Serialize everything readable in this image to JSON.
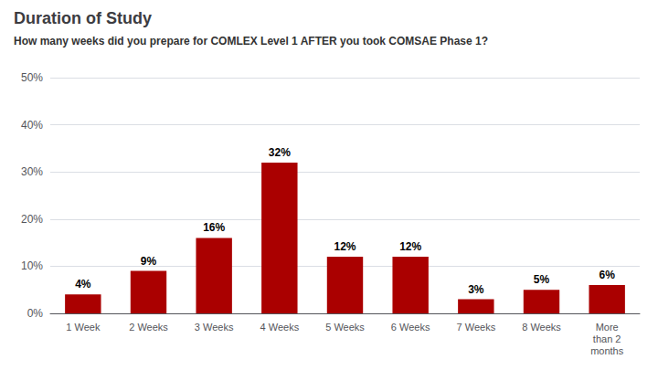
{
  "chart_data": {
    "type": "bar",
    "title": "Duration of Study",
    "subtitle": "How many weeks did you prepare for COMLEX Level 1 AFTER you took COMSAE Phase 1?",
    "categories": [
      "1 Week",
      "2 Weeks",
      "3 Weeks",
      "4 Weeks",
      "5 Weeks",
      "6 Weeks",
      "7 Weeks",
      "8 Weeks",
      "More\nthan 2\nmonths"
    ],
    "values": [
      4,
      9,
      16,
      32,
      12,
      12,
      3,
      5,
      6
    ],
    "value_labels": [
      "4%",
      "9%",
      "16%",
      "32%",
      "12%",
      "12%",
      "3%",
      "5%",
      "6%"
    ],
    "data_labels": true,
    "color": "#AA0000",
    "ylim": [
      0,
      50
    ],
    "yticks": [
      {
        "value": 0,
        "label": "0%"
      },
      {
        "value": 10,
        "label": "10%"
      },
      {
        "value": 20,
        "label": "20%"
      },
      {
        "value": 30,
        "label": "30%"
      },
      {
        "value": 40,
        "label": "40%"
      },
      {
        "value": 50,
        "label": "50%"
      }
    ],
    "grid": true
  }
}
